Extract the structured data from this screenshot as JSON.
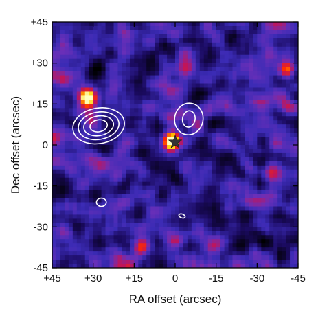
{
  "figure": {
    "x_axis_title": "RA offset (arcsec)",
    "y_axis_title": "Dec offset (arcsec)",
    "x_ticks": [
      {
        "value": 45,
        "label": "+45"
      },
      {
        "value": 30,
        "label": "+30"
      },
      {
        "value": 15,
        "label": "+15"
      },
      {
        "value": 0,
        "label": "0"
      },
      {
        "value": -15,
        "label": "-15"
      },
      {
        "value": -30,
        "label": "-30"
      },
      {
        "value": -45,
        "label": "-45"
      }
    ],
    "y_ticks": [
      {
        "value": 45,
        "label": "+45"
      },
      {
        "value": 30,
        "label": "+30"
      },
      {
        "value": 15,
        "label": "+15"
      },
      {
        "value": 0,
        "label": "0"
      },
      {
        "value": -15,
        "label": "-15"
      },
      {
        "value": -30,
        "label": "-30"
      },
      {
        "value": -45,
        "label": "-45"
      }
    ],
    "x_range": [
      45,
      -45
    ],
    "y_range": [
      -45,
      45
    ],
    "colormap": [
      "#000000",
      "#1a0a5e",
      "#3b2bb5",
      "#6a2fb8",
      "#c0155a",
      "#ff2a00",
      "#ffd000",
      "#ffffc0"
    ],
    "contour_color": "#ffffff",
    "marker_color": "#333333",
    "bright_sources": [
      {
        "ra": 1.5,
        "dec": 1.5,
        "level": 1.0
      },
      {
        "ra": 32,
        "dec": 17,
        "level": 0.9
      },
      {
        "ra": -41,
        "dec": 28,
        "level": 0.55
      },
      {
        "ra": 30,
        "dec": 8,
        "level": 0.35
      },
      {
        "ra": -1,
        "dec": -35,
        "level": 0.4
      },
      {
        "ra": 12,
        "dec": -38,
        "level": 0.35
      }
    ],
    "star_marker": {
      "ra": 0,
      "dec": 1
    },
    "contours": [
      {
        "ra": 28,
        "dec": 7,
        "rx": [
          9.5,
          7.5,
          5.5,
          3.2
        ],
        "ry": [
          6.5,
          5.0,
          3.6,
          2.2
        ],
        "tilt": -10
      },
      {
        "ra": -5,
        "dec": 9.5,
        "rx": [
          5.2,
          2.3
        ],
        "ry": [
          5.8,
          3.0
        ],
        "tilt": 10
      },
      {
        "ra": 27,
        "dec": -21,
        "rx": [
          1.8
        ],
        "ry": [
          1.5
        ],
        "tilt": 0
      },
      {
        "ra": -2.5,
        "dec": -26,
        "rx": [
          1.2
        ],
        "ry": [
          0.7
        ],
        "tilt": 20
      }
    ]
  }
}
